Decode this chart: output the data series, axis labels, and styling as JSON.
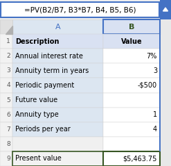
{
  "formula_bar": "=PV(B2/B7, B3*B7, B4, B5, B6)",
  "col_a_header": "A",
  "col_b_header": "B",
  "rows": [
    {
      "row": 1,
      "desc": "Description",
      "val": "Value",
      "is_header": true,
      "is_result": false
    },
    {
      "row": 2,
      "desc": "Annual interest rate",
      "val": "7%",
      "is_header": false,
      "is_result": false
    },
    {
      "row": 3,
      "desc": "Annuity term in years",
      "val": "3",
      "is_header": false,
      "is_result": false
    },
    {
      "row": 4,
      "desc": "Periodic payment",
      "val": "-$500",
      "is_header": false,
      "is_result": false
    },
    {
      "row": 5,
      "desc": "Future value",
      "val": "",
      "is_header": false,
      "is_result": false
    },
    {
      "row": 6,
      "desc": "Annuity type",
      "val": "1",
      "is_header": false,
      "is_result": false
    },
    {
      "row": 7,
      "desc": "Periods per year",
      "val": "4",
      "is_header": false,
      "is_result": false
    },
    {
      "row": 8,
      "desc": "",
      "val": "",
      "is_header": false,
      "is_result": false
    },
    {
      "row": 9,
      "desc": "Present value",
      "val": "$5,463.75",
      "is_header": false,
      "is_result": true
    }
  ],
  "fig_bg": "#f0f0f0",
  "formula_bg": "#ffffff",
  "formula_border": "#4472c4",
  "formula_text_color": "#000000",
  "arrow_bg": "#4472c4",
  "corner_cell_bg": "#e0e0e0",
  "corner_tri_color": "#b0b0b0",
  "col_a_hdr_bg": "#dce6f1",
  "col_a_hdr_text": "#4472c4",
  "col_b_hdr_bg": "#d9e1f2",
  "col_b_hdr_text": "#375623",
  "col_b_hdr_border": "#4472c4",
  "row1_bg": "#d9e1f2",
  "col_a_data_bg": "#dce6f1",
  "col_b_data_bg": "#ffffff",
  "row_num_bg": "#f2f2f2",
  "row_num_text": "#595959",
  "grid_color": "#d0d0d0",
  "text_color": "#000000",
  "result_border": "#375623",
  "result_a_bg": "#f2f2f2",
  "result_b_bg": "#ffffff",
  "row8_a_bg": "#f0f0f0",
  "row8_b_bg": "#ffffff"
}
